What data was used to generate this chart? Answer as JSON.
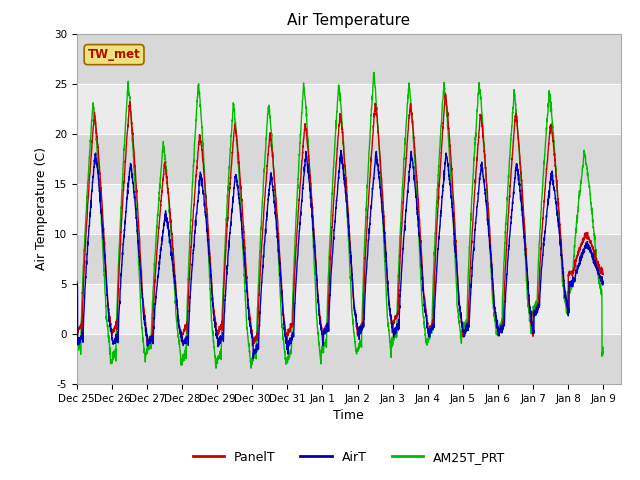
{
  "title": "Air Temperature",
  "ylabel": "Air Temperature (C)",
  "xlabel": "Time",
  "ylim": [
    -5,
    30
  ],
  "yticks": [
    -5,
    0,
    5,
    10,
    15,
    20,
    25,
    30
  ],
  "band_ranges": [
    [
      25,
      30
    ],
    [
      15,
      20
    ],
    [
      5,
      10
    ],
    [
      -5,
      0
    ]
  ],
  "band_color": "#d8d8d8",
  "plot_bg_color": "#ebebeb",
  "grid_color": "white",
  "legend_labels": [
    "PanelT",
    "AirT",
    "AM25T_PRT"
  ],
  "legend_colors": [
    "#cc0000",
    "#0000bb",
    "#00bb00"
  ],
  "station_label": "TW_met",
  "station_label_color": "#aa1100",
  "station_box_color": "#f0e080",
  "line_width": 1.0,
  "title_fontsize": 11,
  "tick_fontsize": 7.5,
  "label_fontsize": 9
}
